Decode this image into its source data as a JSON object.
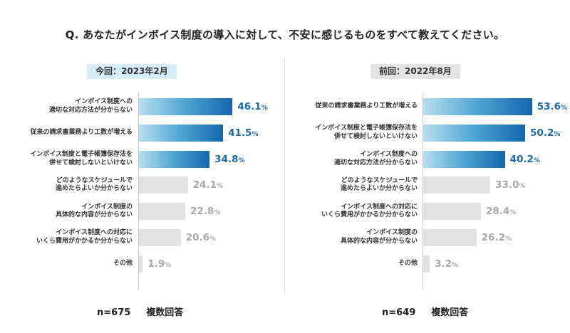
{
  "question": "Q. あなたがインボイス制度の導入に対して、不安に感じるものをすべて教えてください。",
  "colors": {
    "highlight_text": "#1a6aa9",
    "highlight_bar_from": "#b7dff0",
    "highlight_bar_to": "#1565ac",
    "muted_bar": "#e2e2e2",
    "muted_text": "#a8a8a8",
    "current_label_bg": "#d6ecf7",
    "previous_label_bg": "#e3e3e3"
  },
  "chart_data": [
    {
      "type": "bar",
      "orientation": "horizontal",
      "period_label": "今回：2023年2月",
      "unit": "%",
      "xlim": [
        0,
        60
      ],
      "highlight_top_n": 3,
      "categories": [
        "インボイス制度への\n適切な対応方法が分からない",
        "従来の請求書業務より工数が増える",
        "インボイス制度と電子帳簿保存法を\n併せて検討しないといけない",
        "どのようなスケジュールで\n進めたらよいか分からない",
        "インボイス制度の\n具体的な内容が分からない",
        "インボイス制度への対応に\nいくら費用がかかるか分からない",
        "その他"
      ],
      "values": [
        46.1,
        41.5,
        34.8,
        24.1,
        22.8,
        20.6,
        1.9
      ],
      "sample": "n=675",
      "note": "複数回答"
    },
    {
      "type": "bar",
      "orientation": "horizontal",
      "period_label": "前回：2022年8月",
      "unit": "%",
      "xlim": [
        0,
        60
      ],
      "highlight_top_n": 3,
      "categories": [
        "従来の請求書業務より工数が増える",
        "インボイス制度と電子帳簿保存法を\n併せて検討しないといけない",
        "インボイス制度への\n適切な対応方法が分からない",
        "どのようなスケジュールで\n進めたらよいか分からない",
        "インボイス制度への対応に\nいくら費用がかかるか分からない",
        "インボイス制度の\n具体的な内容が分からない",
        "その他"
      ],
      "values": [
        53.6,
        50.2,
        40.2,
        33.0,
        28.4,
        26.2,
        3.2
      ],
      "sample": "n=649",
      "note": "複数回答"
    }
  ]
}
